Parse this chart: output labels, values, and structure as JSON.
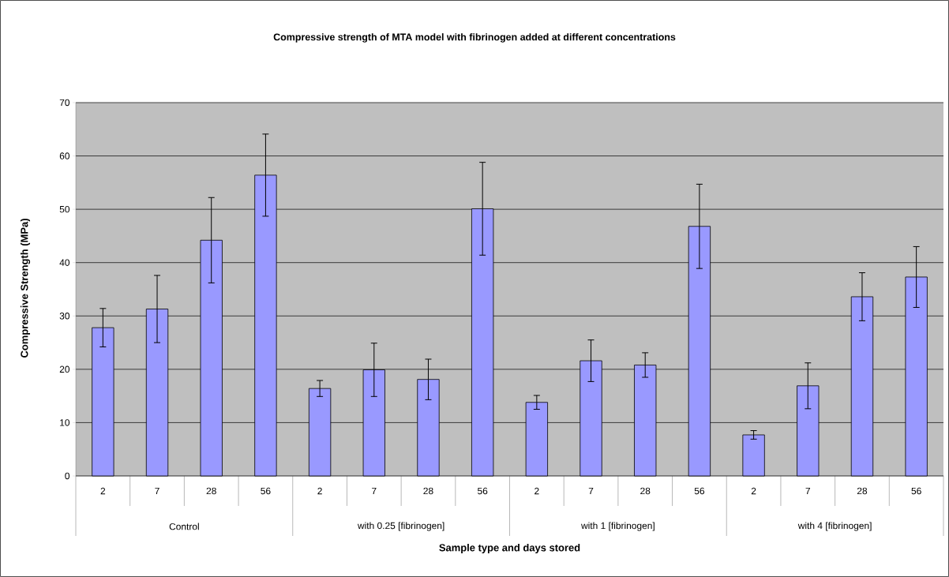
{
  "chart_data": {
    "type": "bar",
    "title": "Compressive strength of MTA model with fibrinogen added at different concentrations",
    "xlabel": "Sample type and days stored",
    "ylabel": "Compressive Strength (MPa)",
    "categories": [
      "2",
      "7",
      "28",
      "56",
      "2",
      "7",
      "28",
      "56",
      "2",
      "7",
      "28",
      "56",
      "2",
      "7",
      "28",
      "56"
    ],
    "values": [
      27.8,
      31.3,
      44.2,
      56.4,
      16.4,
      19.9,
      18.1,
      50.1,
      13.8,
      21.6,
      20.8,
      46.8,
      7.7,
      16.9,
      33.6,
      37.3
    ],
    "errors": [
      3.6,
      6.3,
      8.0,
      7.7,
      1.5,
      5.0,
      3.8,
      8.7,
      1.3,
      3.9,
      2.3,
      7.9,
      0.8,
      4.3,
      4.5,
      5.7
    ],
    "color": "#9999ff",
    "annotations": [
      "Control",
      "with 0.25 [fibrinogen]",
      "with 1 [fibrinogen]",
      "with 4 [fibrinogen]"
    ],
    "ylim": [
      0,
      70
    ],
    "yticks": [
      0,
      10,
      20,
      30,
      40,
      50,
      60,
      70
    ],
    "grid": "y"
  }
}
